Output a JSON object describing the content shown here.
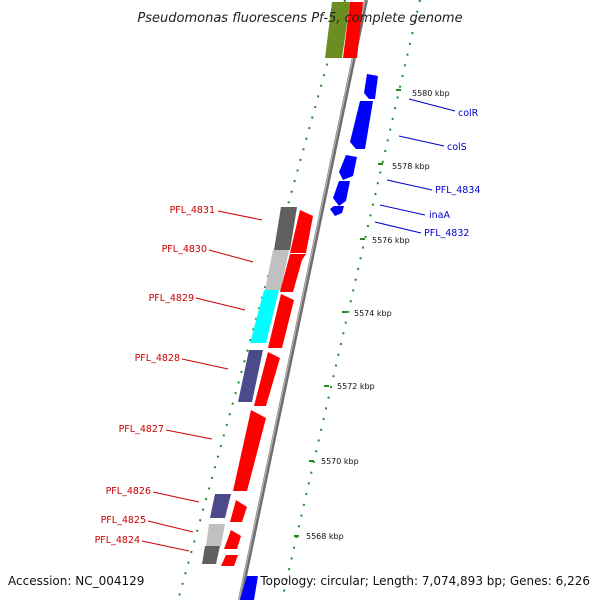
{
  "title": "Pseudomonas fluorescens Pf-5, complete genome",
  "footer": {
    "accession": "Accession: NC_004129",
    "topology": "Topology: circular; Length: 7,074,893 bp; Genes: 6,226"
  },
  "colors": {
    "forward_cds": "#ff0000",
    "reverse_cds": "#0000ff",
    "dark_gray": "#606060",
    "light_gray": "#c0c0c0",
    "cyan": "#00ffff",
    "slate_blue": "#4b4b8c",
    "olive": "#6b8e23",
    "tick_green": "#228b22",
    "left_label": "#cc0000",
    "right_label": "#0000cc",
    "backbone": "#808080"
  },
  "scale_ticks": [
    {
      "label": "5568 kbp"
    },
    {
      "label": "5570 kbp"
    },
    {
      "label": "5572 kbp"
    },
    {
      "label": "5574 kbp"
    },
    {
      "label": "5576 kbp"
    },
    {
      "label": "5578 kbp"
    },
    {
      "label": "5580 kbp"
    }
  ],
  "left_genes": [
    {
      "name": "PFL_4831"
    },
    {
      "name": "PFL_4830"
    },
    {
      "name": "PFL_4829"
    },
    {
      "name": "PFL_4828"
    },
    {
      "name": "PFL_4827"
    },
    {
      "name": "PFL_4826"
    },
    {
      "name": "PFL_4825"
    },
    {
      "name": "PFL_4824"
    }
  ],
  "right_genes": [
    {
      "name": "colR"
    },
    {
      "name": "colS"
    },
    {
      "name": "PFL_4834"
    },
    {
      "name": "inaA"
    },
    {
      "name": "PFL_4832"
    }
  ]
}
